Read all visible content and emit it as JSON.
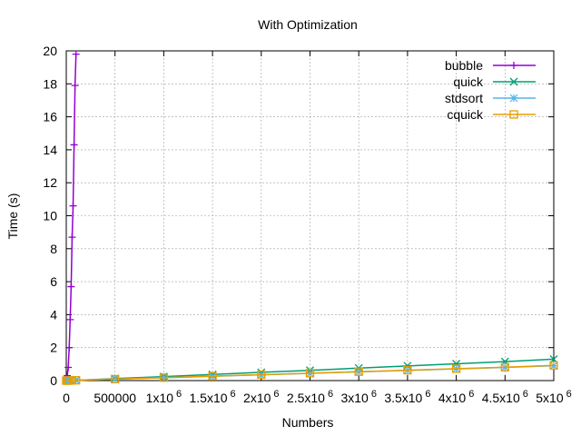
{
  "chart_data": {
    "type": "line",
    "title": "With Optimization",
    "xlabel": "Numbers",
    "ylabel": "Time (s)",
    "xlim": [
      0,
      5000000
    ],
    "ylim": [
      0,
      20
    ],
    "grid": true,
    "legend_position": "top-right",
    "y_ticks": [
      {
        "value": 0,
        "label": "0"
      },
      {
        "value": 2,
        "label": "2"
      },
      {
        "value": 4,
        "label": "4"
      },
      {
        "value": 6,
        "label": "6"
      },
      {
        "value": 8,
        "label": "8"
      },
      {
        "value": 10,
        "label": "10"
      },
      {
        "value": 12,
        "label": "12"
      },
      {
        "value": 14,
        "label": "14"
      },
      {
        "value": 16,
        "label": "16"
      },
      {
        "value": 18,
        "label": "18"
      },
      {
        "value": 20,
        "label": "20"
      }
    ],
    "x_ticks": [
      {
        "value": 0,
        "mantissa": "0",
        "exponent": ""
      },
      {
        "value": 500000,
        "mantissa": "500000",
        "exponent": ""
      },
      {
        "value": 1000000,
        "mantissa": "1x10",
        "exponent": "6"
      },
      {
        "value": 1500000,
        "mantissa": "1.5x10",
        "exponent": "6"
      },
      {
        "value": 2000000,
        "mantissa": "2x10",
        "exponent": "6"
      },
      {
        "value": 2500000,
        "mantissa": "2.5x10",
        "exponent": "6"
      },
      {
        "value": 3000000,
        "mantissa": "3x10",
        "exponent": "6"
      },
      {
        "value": 3500000,
        "mantissa": "3.5x10",
        "exponent": "6"
      },
      {
        "value": 4000000,
        "mantissa": "4x10",
        "exponent": "6"
      },
      {
        "value": 4500000,
        "mantissa": "4.5x10",
        "exponent": "6"
      },
      {
        "value": 5000000,
        "mantissa": "5x10",
        "exponent": "6"
      }
    ],
    "series": [
      {
        "name": "bubble",
        "color": "#9400d3",
        "marker": "plus",
        "x": [
          0,
          10000,
          20000,
          30000,
          40000,
          50000,
          60000,
          70000,
          80000,
          90000,
          100000
        ],
        "y": [
          0.0,
          0.3,
          0.8,
          2.0,
          3.7,
          5.7,
          8.7,
          10.6,
          14.3,
          17.9,
          19.8
        ]
      },
      {
        "name": "quick",
        "color": "#009e73",
        "marker": "cross",
        "x": [
          0,
          10000,
          20000,
          50000,
          100000,
          500000,
          1000000,
          1500000,
          2000000,
          2500000,
          3000000,
          3500000,
          4000000,
          4500000,
          5000000
        ],
        "y": [
          0.0,
          0.0,
          0.0,
          0.01,
          0.02,
          0.12,
          0.24,
          0.37,
          0.5,
          0.62,
          0.76,
          0.89,
          1.02,
          1.15,
          1.3
        ]
      },
      {
        "name": "stdsort",
        "color": "#56b4e9",
        "marker": "star",
        "x": [
          0,
          10000,
          20000,
          50000,
          100000,
          500000,
          1000000,
          1500000,
          2000000,
          2500000,
          3000000,
          3500000,
          4000000,
          4500000,
          5000000
        ],
        "y": [
          0.0,
          0.0,
          0.0,
          0.01,
          0.02,
          0.08,
          0.17,
          0.26,
          0.35,
          0.44,
          0.53,
          0.62,
          0.71,
          0.8,
          0.9
        ]
      },
      {
        "name": "cquick",
        "color": "#e69f00",
        "marker": "square",
        "x": [
          0,
          10000,
          20000,
          50000,
          100000,
          500000,
          1000000,
          1500000,
          2000000,
          2500000,
          3000000,
          3500000,
          4000000,
          4500000,
          5000000
        ],
        "y": [
          0.0,
          0.0,
          0.0,
          0.01,
          0.02,
          0.09,
          0.18,
          0.27,
          0.36,
          0.45,
          0.54,
          0.63,
          0.72,
          0.81,
          0.92
        ]
      }
    ]
  }
}
